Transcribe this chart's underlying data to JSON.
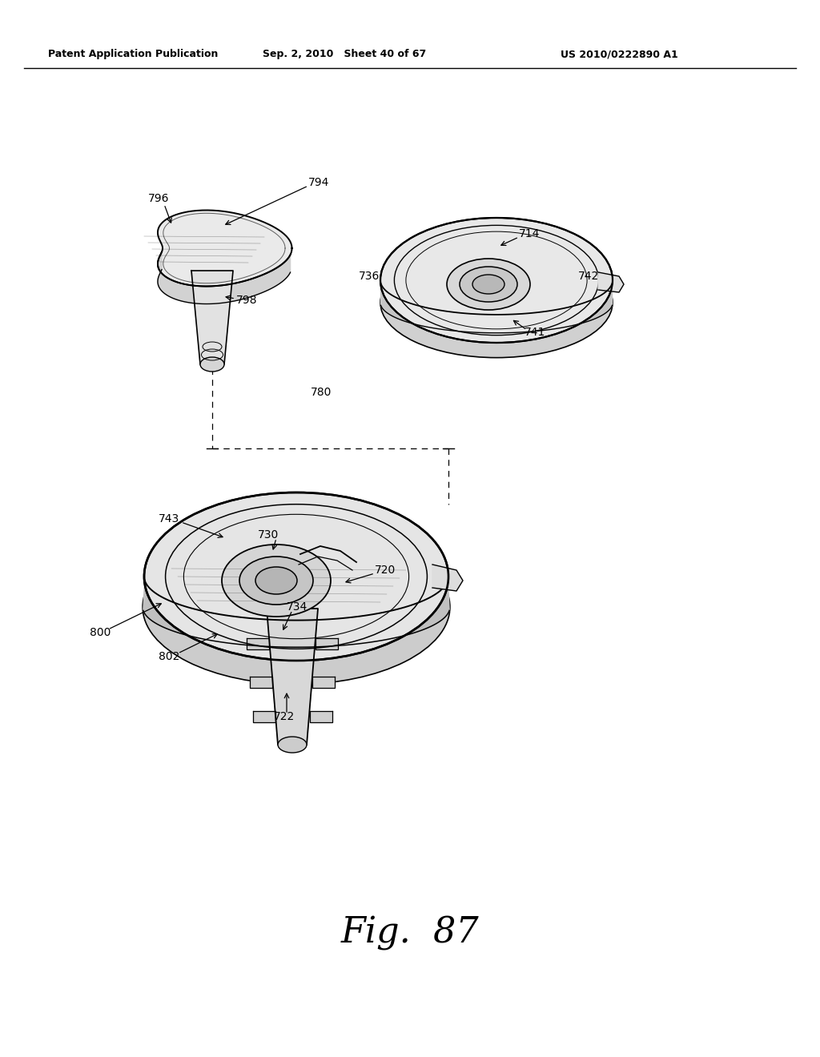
{
  "bg_color": "#ffffff",
  "header_left": "Patent Application Publication",
  "header_mid": "Sep. 2, 2010   Sheet 40 of 67",
  "header_right": "US 2010/0222890 A1",
  "fig_label": "Fig.  87"
}
